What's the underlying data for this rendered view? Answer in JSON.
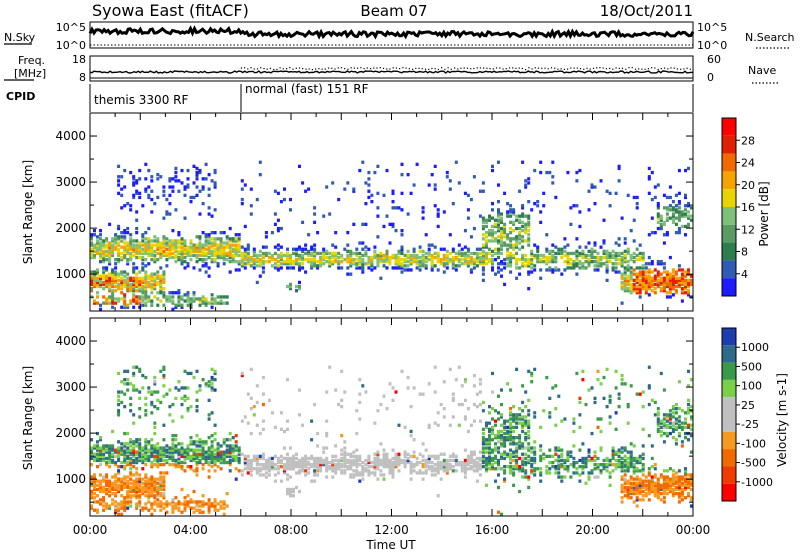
{
  "header": {
    "station": "Syowa East (fitACF)",
    "beam": "Beam 07",
    "date": "18/Oct/2011"
  },
  "noise_panel": {
    "left_label": "N.Sky",
    "right_label": "N.Search",
    "left_ticks": [
      "10^5",
      "10^0"
    ],
    "right_ticks": [
      "10^5",
      "10^0"
    ]
  },
  "freq_panel": {
    "left_label_1": "Freq.",
    "left_label_2": "[MHz]",
    "left_ticks": [
      "18",
      "8"
    ],
    "right_label": "Nave",
    "right_ticks": [
      "60",
      "0"
    ]
  },
  "cpid_panel": {
    "label": "CPID",
    "modes": [
      {
        "name": "themis 3300 RF",
        "start_hour": 0,
        "end_hour": 6
      },
      {
        "name": "normal (fast) 151 RF",
        "start_hour": 6,
        "end_hour": 24
      }
    ]
  },
  "colors": {
    "power_scale": [
      "#1c1cff",
      "#2f5bb5",
      "#2e7d4f",
      "#5a9a63",
      "#7cc07a",
      "#e8d400",
      "#f5a300",
      "#f06a00",
      "#e02000",
      "#ff0000"
    ],
    "velocity_scale": [
      "#ff0000",
      "#f03a00",
      "#f06a00",
      "#f59a20",
      "#c0c0c0",
      "#c0c0c0",
      "#7ad04a",
      "#3a9a4a",
      "#2f6a8a",
      "#1c3cb0"
    ]
  },
  "chart_data": [
    {
      "type": "heatmap",
      "parameter": "power",
      "x": [
        0,
        2,
        4,
        6,
        8,
        10,
        12,
        14,
        16,
        18,
        20,
        22,
        24
      ],
      "xticks": [
        "00:00",
        "04:00",
        "08:00",
        "12:00",
        "16:00",
        "20:00",
        "00:00"
      ],
      "xlabel": "Time UT",
      "ylabel": "Slant Range [km]",
      "yticks": [
        "1000",
        "2000",
        "3000",
        "4000"
      ],
      "ylim": [
        200,
        4500
      ],
      "colorbar_label": "Power [dB]",
      "colorbar_ticks": [
        "4",
        "8",
        "12",
        "16",
        "20",
        "24",
        "28"
      ],
      "colorbar_range": [
        0,
        30
      ]
    },
    {
      "type": "heatmap",
      "parameter": "velocity",
      "x": [
        0,
        2,
        4,
        6,
        8,
        10,
        12,
        14,
        16,
        18,
        20,
        22,
        24
      ],
      "xticks": [
        "00:00",
        "04:00",
        "08:00",
        "12:00",
        "16:00",
        "20:00",
        "00:00"
      ],
      "xlabel": "Time UT",
      "ylabel": "Slant Range [km]",
      "yticks": [
        "1000",
        "2000",
        "3000",
        "4000"
      ],
      "ylim": [
        200,
        4500
      ],
      "colorbar_label": "Velocity [m s-1]",
      "colorbar_ticks": [
        "1000",
        "500",
        "100",
        "25",
        "-25",
        "-100",
        "-500",
        "-1000"
      ],
      "colorbar_range": [
        -1000,
        1000
      ]
    }
  ]
}
